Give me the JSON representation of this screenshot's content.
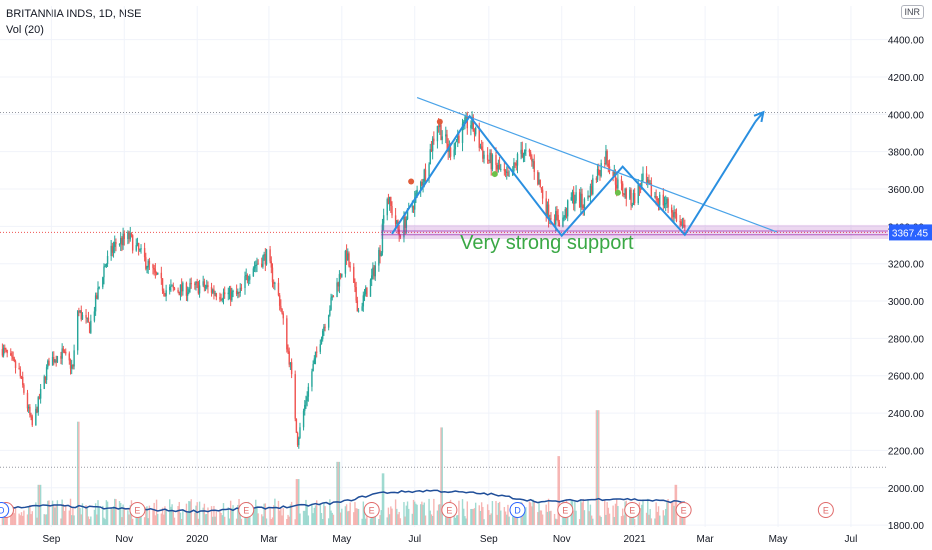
{
  "legend": {
    "symbol_line": "BRITANNIA INDS, 1D, NSE",
    "volume_line": "Vol (20)",
    "currency": "INR"
  },
  "chart_data": {
    "type": "candlestick",
    "symbol": "BRITANNIA INDS",
    "interval": "1D",
    "exchange": "NSE",
    "y_axis": {
      "ticks": [
        1800,
        2000,
        2200,
        2400,
        2600,
        2800,
        3000,
        3200,
        3400,
        3600,
        3800,
        4000,
        4200,
        4400
      ],
      "tick_labels": [
        "1800.00",
        "2000.00",
        "2200.00",
        "2400.00",
        "2600.00",
        "2800.00",
        "3000.00",
        "3200.00",
        "3400.00",
        "3600.00",
        "3800.00",
        "4000.00",
        "4200.00",
        "4400.00"
      ],
      "range": [
        1790,
        4580
      ]
    },
    "x_axis": {
      "labels": [
        "Sep",
        "Nov",
        "2020",
        "Mar",
        "May",
        "Jul",
        "Sep",
        "Nov",
        "2021",
        "Mar",
        "May",
        "Jul"
      ],
      "label_dates": [
        "2019-09-01",
        "2019-11-01",
        "2020-01-01",
        "2020-03-01",
        "2020-05-01",
        "2020-07-01",
        "2020-09-01",
        "2020-11-01",
        "2021-01-01",
        "2021-03-01",
        "2021-05-01",
        "2021-07-01"
      ],
      "range": [
        "2019-07-20",
        "2021-08-01"
      ]
    },
    "last_price": 3367.45,
    "last_price_label": "3367.45",
    "reference_lines": [
      4010,
      2110
    ],
    "price_path": [
      [
        "2019-07-20",
        2760
      ],
      [
        "2019-08-05",
        2620
      ],
      [
        "2019-08-16",
        2330
      ],
      [
        "2019-08-30",
        2680
      ],
      [
        "2019-09-10",
        2720
      ],
      [
        "2019-09-19",
        2640
      ],
      [
        "2019-09-23",
        2950
      ],
      [
        "2019-10-03",
        2860
      ],
      [
        "2019-10-15",
        3180
      ],
      [
        "2019-10-25",
        3310
      ],
      [
        "2019-11-05",
        3340
      ],
      [
        "2019-11-20",
        3200
      ],
      [
        "2019-12-05",
        3060
      ],
      [
        "2019-12-20",
        3060
      ],
      [
        "2020-01-05",
        3080
      ],
      [
        "2020-01-20",
        3040
      ],
      [
        "2020-02-05",
        3030
      ],
      [
        "2020-02-15",
        3180
      ],
      [
        "2020-02-28",
        3240
      ],
      [
        "2020-03-10",
        3000
      ],
      [
        "2020-03-19",
        2650
      ],
      [
        "2020-03-25",
        2250
      ],
      [
        "2020-04-05",
        2600
      ],
      [
        "2020-04-15",
        2850
      ],
      [
        "2020-04-25",
        3050
      ],
      [
        "2020-05-05",
        3250
      ],
      [
        "2020-05-15",
        2950
      ],
      [
        "2020-05-25",
        3100
      ],
      [
        "2020-06-03",
        3300
      ],
      [
        "2020-06-06",
        3600
      ],
      [
        "2020-06-18",
        3360
      ],
      [
        "2020-07-01",
        3540
      ],
      [
        "2020-07-10",
        3700
      ],
      [
        "2020-07-20",
        3960
      ],
      [
        "2020-07-30",
        3800
      ],
      [
        "2020-08-07",
        3890
      ],
      [
        "2020-08-16",
        3970
      ],
      [
        "2020-08-28",
        3780
      ],
      [
        "2020-09-10",
        3700
      ],
      [
        "2020-09-18",
        3640
      ],
      [
        "2020-09-28",
        3810
      ],
      [
        "2020-10-08",
        3740
      ],
      [
        "2020-10-20",
        3480
      ],
      [
        "2020-11-01",
        3420
      ],
      [
        "2020-11-10",
        3560
      ],
      [
        "2020-11-20",
        3520
      ],
      [
        "2020-11-29",
        3660
      ],
      [
        "2020-12-08",
        3780
      ],
      [
        "2020-12-18",
        3620
      ],
      [
        "2020-12-30",
        3540
      ],
      [
        "2021-01-08",
        3640
      ],
      [
        "2021-01-18",
        3560
      ],
      [
        "2021-01-28",
        3520
      ],
      [
        "2021-02-05",
        3450
      ],
      [
        "2021-02-12",
        3367
      ]
    ],
    "volume_spikes": [
      [
        "2019-08-22",
        0.35
      ],
      [
        "2019-09-23",
        0.9
      ],
      [
        "2020-03-25",
        0.4
      ],
      [
        "2020-04-28",
        0.55
      ],
      [
        "2020-06-05",
        0.45
      ],
      [
        "2020-07-24",
        0.85
      ],
      [
        "2020-10-30",
        0.6
      ],
      [
        "2020-12-01",
        1.0
      ],
      [
        "2021-02-05",
        0.35
      ]
    ],
    "volume_ma_path": [
      [
        "2019-07-20",
        0.15
      ],
      [
        "2019-09-01",
        0.17
      ],
      [
        "2019-11-01",
        0.14
      ],
      [
        "2020-01-01",
        0.12
      ],
      [
        "2020-03-20",
        0.16
      ],
      [
        "2020-05-01",
        0.2
      ],
      [
        "2020-06-01",
        0.28
      ],
      [
        "2020-07-15",
        0.3
      ],
      [
        "2020-09-01",
        0.27
      ],
      [
        "2020-10-15",
        0.2
      ],
      [
        "2020-12-15",
        0.23
      ],
      [
        "2021-02-12",
        0.2
      ]
    ],
    "earnings_markers": {
      "label": "E",
      "dates": [
        "2019-07-25",
        "2019-11-12",
        "2020-02-11",
        "2020-05-26",
        "2020-07-30",
        "2020-11-04",
        "2020-12-30",
        "2021-02-11",
        "2021-06-10"
      ],
      "dividend_label": "D",
      "dividend_dates": [
        "2019-07-21",
        "2020-09-25"
      ]
    },
    "signal_dots": [
      {
        "date": "2020-06-28",
        "price": 3640,
        "color": "#e05c3a"
      },
      {
        "date": "2020-07-22",
        "price": 3960,
        "color": "#e05c3a"
      },
      {
        "date": "2020-09-06",
        "price": 3680,
        "color": "#6cc04a"
      },
      {
        "date": "2020-12-18",
        "price": 3580,
        "color": "#6cc04a"
      }
    ],
    "drawings": {
      "trendline": [
        [
          "2020-07-03",
          4090
        ],
        [
          "2021-04-30",
          3370
        ]
      ],
      "support_zone": [
        3335,
        3405
      ],
      "zigzag": [
        [
          "2020-06-12",
          3360
        ],
        [
          "2020-08-16",
          3990
        ],
        [
          "2020-11-01",
          3350
        ],
        [
          "2020-12-22",
          3720
        ],
        [
          "2021-02-12",
          3355
        ],
        [
          "2021-04-12",
          3960
        ]
      ],
      "arrow_target": [
        "2021-04-12",
        3990
      ],
      "annotation": {
        "text": "Very strong support",
        "date": "2020-08-08",
        "price": 3280,
        "color": "#3aa845"
      }
    },
    "colors": {
      "up": "#26a69a",
      "down": "#ef5350",
      "drawing": "#2a8fe0",
      "trendline": "#4aa3e8",
      "support": "#9c27b0",
      "volume_ma": "#1f4e99",
      "price_label_bg": "#2962ff"
    }
  }
}
